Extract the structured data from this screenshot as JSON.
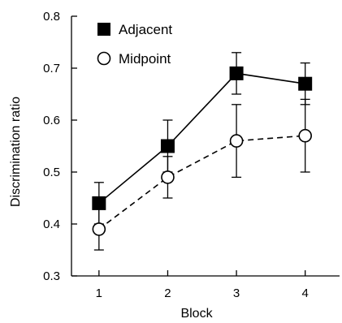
{
  "chart_data": {
    "type": "line",
    "xlabel": "Block",
    "ylabel": "Discrimination ratio",
    "categories": [
      "1",
      "2",
      "3",
      "4"
    ],
    "x": [
      1,
      2,
      3,
      4
    ],
    "xlim": [
      0.6,
      4.5
    ],
    "ylim": [
      0.3,
      0.8
    ],
    "yticks": [
      "0.3",
      "0.4",
      "0.5",
      "0.6",
      "0.7",
      "0.8"
    ],
    "grid": false,
    "legend_position": "top-left",
    "series": [
      {
        "name": "Adjacent",
        "marker": "filled-square",
        "line_style": "solid",
        "color": "#000000",
        "values": [
          0.44,
          0.55,
          0.69,
          0.67
        ],
        "error": [
          0.04,
          0.05,
          0.04,
          0.04
        ]
      },
      {
        "name": "Midpoint",
        "marker": "open-circle",
        "line_style": "dashed",
        "color": "#000000",
        "values": [
          0.39,
          0.49,
          0.56,
          0.57
        ],
        "error": [
          0.04,
          0.04,
          0.07,
          0.07
        ]
      }
    ]
  }
}
